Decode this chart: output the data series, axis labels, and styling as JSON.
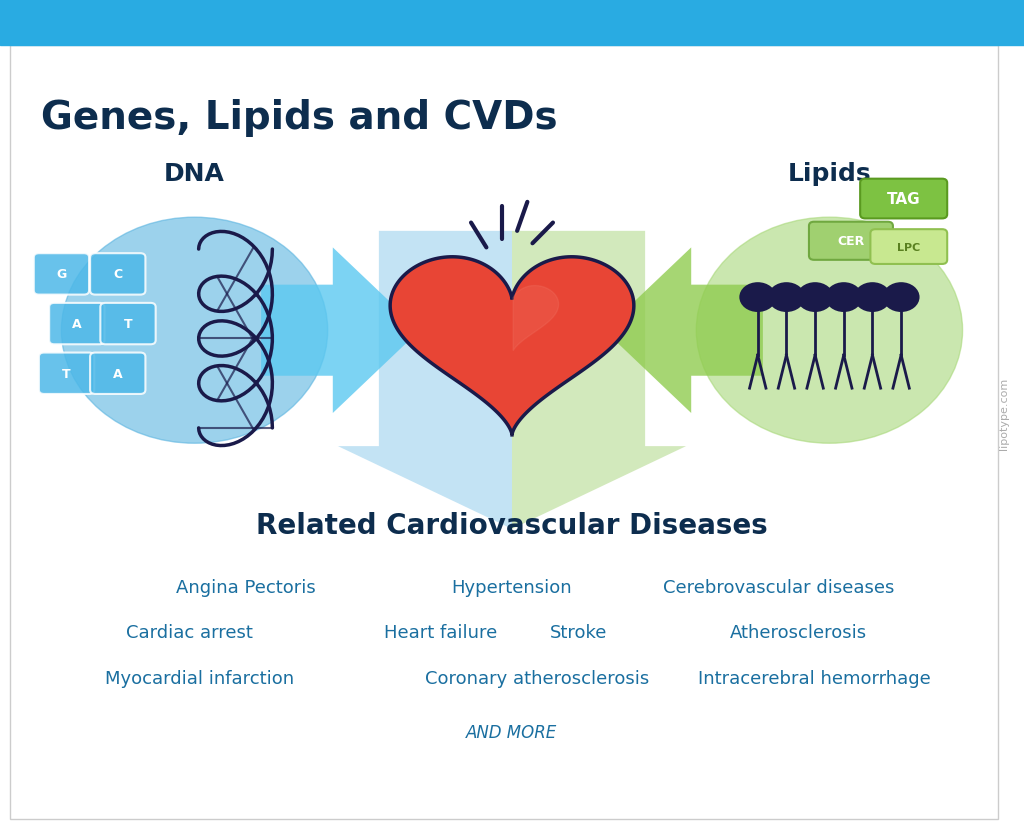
{
  "title": "Genes, Lipids and CVDs",
  "title_color": "#0d2d4e",
  "title_fontsize": 28,
  "bg_color": "#ffffff",
  "top_bar_color": "#29abe2",
  "top_bar_height": 0.055,
  "dna_label": "DNA",
  "lipids_label": "Lipids",
  "cvd_title": "Related Cardiovascular Diseases",
  "cvd_title_color": "#0d2d4e",
  "cvd_title_fontsize": 20,
  "dna_label_color": "#0d2d4e",
  "lipids_label_color": "#0d2d4e",
  "label_fontsize": 18,
  "watermark": "lipotype.com",
  "watermark_color": "#888888",
  "blue_circle_color": "#5ab4e0",
  "green_circle_color": "#a8d87a",
  "blue_arrow_color": "#4db8e8",
  "green_arrow_color": "#8dc63f",
  "down_arrow_color_top": "#b8dff0",
  "down_arrow_color_bottom": "#c8e8c0",
  "tag_box_color": "#7dc242",
  "cer_box_color": "#a8d87a",
  "lpc_box_color": "#c8e8a0",
  "tag_text": "TAG",
  "cer_text": "CER",
  "lpc_text": "LPC",
  "gene_letters": [
    "G",
    "C",
    "A",
    "T",
    "T",
    "A"
  ],
  "gene_letter_colors": [
    "#4db8e8",
    "#4db8e8",
    "#4db8e8",
    "#4db8e8",
    "#4db8e8",
    "#4db8e8"
  ],
  "disease_rows": [
    [
      "Angina Pectoris",
      "Hypertension",
      "Cerebrovascular diseases"
    ],
    [
      "Cardiac arrest",
      "Heart failure",
      "Stroke",
      "Atherosclerosis"
    ],
    [
      "Myocardial infarction",
      "Coronary atherosclerosis",
      "Intracerebral hemorrhage"
    ]
  ],
  "and_more": "AND MORE",
  "disease_color": "#1a6fa0",
  "disease_fontsize": 13,
  "and_more_color": "#1a6fa0",
  "and_more_fontsize": 12,
  "heart_red": "#e84040",
  "heart_orange": "#e86030",
  "heart_dark": "#1a1a4a",
  "dna_dark": "#1a1a4a"
}
